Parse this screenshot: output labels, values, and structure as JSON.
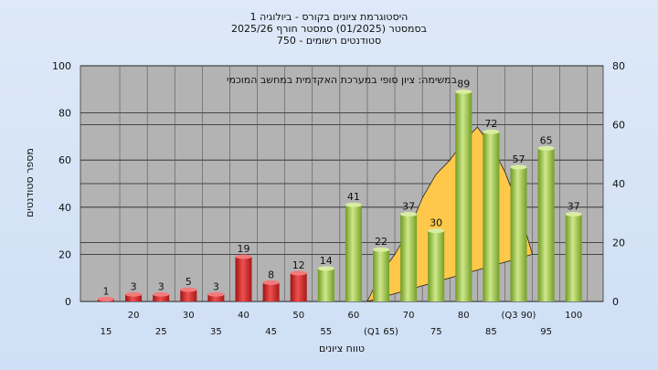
{
  "chart_data": {
    "type": "bar",
    "title_lines": [
      "היסטוגרמת ציונים בקורס - ביולוגיה 1",
      "בסמסטר  (01/2025)  סמסטר חורף 2025/26",
      "סטודנטים רשומים - 750"
    ],
    "annotation": "במשימה: ציון סופי במערכת האקדמית במחשב המוכמי",
    "xlabel": "טווח ציונים",
    "ylabel": "מספר סטודנטים",
    "ylim": [
      0,
      100
    ],
    "yticks": [
      0,
      20,
      40,
      60,
      80,
      100
    ],
    "y2lim": [
      0,
      80
    ],
    "y2ticks": [
      0,
      20,
      40,
      60,
      80
    ],
    "grid": true,
    "categories": [
      "15",
      "20",
      "25",
      "30",
      "35",
      "40",
      "45",
      "50",
      "55",
      "60",
      "(Q1 65)",
      "70",
      "75",
      "80",
      "85",
      "(Q3 90)",
      "95",
      "100"
    ],
    "values": [
      1,
      3,
      3,
      5,
      3,
      19,
      8,
      12,
      14,
      41,
      22,
      37,
      30,
      89,
      72,
      57,
      65,
      37
    ],
    "bar_status": [
      "fail",
      "fail",
      "fail",
      "fail",
      "fail",
      "fail",
      "fail",
      "fail",
      "pass",
      "pass",
      "pass",
      "pass",
      "pass",
      "pass",
      "pass",
      "pass",
      "pass",
      "pass"
    ],
    "distribution_curve": {
      "x_index": [
        9.5,
        10,
        10.5,
        11,
        11.5,
        12,
        12.5,
        13,
        13.5,
        14,
        14.5,
        15,
        15.5
      ],
      "values": [
        0,
        12,
        20,
        30,
        44,
        54,
        60,
        68,
        74,
        66,
        55,
        40,
        20
      ]
    },
    "colors": {
      "fail": "#d42a2a",
      "pass": "#8fbf3a",
      "curve_fill": "#ffc84a",
      "plot_bg": "#b3b3b3"
    }
  }
}
